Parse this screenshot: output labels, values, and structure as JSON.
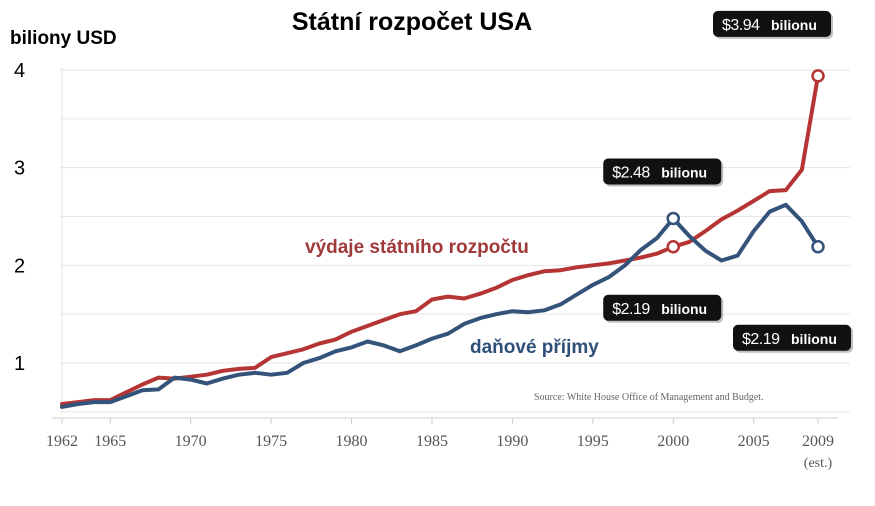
{
  "chart_data": {
    "type": "line",
    "title": "Státní rozpočet USA",
    "ylabel": "biliony USD",
    "source": "Source:   White House Office of Management and Budget.",
    "xlim": [
      1962,
      2009
    ],
    "ylim": [
      0.3,
      4.3
    ],
    "yticks": [
      1,
      2,
      3,
      4
    ],
    "xticks": [
      {
        "value": 1962,
        "label": "1962"
      },
      {
        "value": 1965,
        "label": "1965"
      },
      {
        "value": 1970,
        "label": "1970"
      },
      {
        "value": 1975,
        "label": "1975"
      },
      {
        "value": 1980,
        "label": "1980"
      },
      {
        "value": 1985,
        "label": "1985"
      },
      {
        "value": 1990,
        "label": "1990"
      },
      {
        "value": 1995,
        "label": "1995"
      },
      {
        "value": 2000,
        "label": "2000"
      },
      {
        "value": 2005,
        "label": "2005"
      },
      {
        "value": 2009,
        "label": "2009",
        "sublabel": "(est.)"
      }
    ],
    "grid": true,
    "series": [
      {
        "name": "výdaje státního rozpočtu",
        "color": "#b53535",
        "label_color": "#a03a3a",
        "points": [
          [
            1962,
            0.58
          ],
          [
            1963,
            0.6
          ],
          [
            1964,
            0.62
          ],
          [
            1965,
            0.62
          ],
          [
            1966,
            0.7
          ],
          [
            1967,
            0.78
          ],
          [
            1968,
            0.85
          ],
          [
            1969,
            0.84
          ],
          [
            1970,
            0.86
          ],
          [
            1971,
            0.88
          ],
          [
            1972,
            0.92
          ],
          [
            1973,
            0.94
          ],
          [
            1974,
            0.95
          ],
          [
            1975,
            1.06
          ],
          [
            1976,
            1.1
          ],
          [
            1977,
            1.14
          ],
          [
            1978,
            1.2
          ],
          [
            1979,
            1.24
          ],
          [
            1980,
            1.32
          ],
          [
            1981,
            1.38
          ],
          [
            1982,
            1.44
          ],
          [
            1983,
            1.5
          ],
          [
            1984,
            1.53
          ],
          [
            1985,
            1.65
          ],
          [
            1986,
            1.68
          ],
          [
            1987,
            1.66
          ],
          [
            1988,
            1.71
          ],
          [
            1989,
            1.77
          ],
          [
            1990,
            1.85
          ],
          [
            1991,
            1.9
          ],
          [
            1992,
            1.94
          ],
          [
            1993,
            1.95
          ],
          [
            1994,
            1.98
          ],
          [
            1995,
            2.0
          ],
          [
            1996,
            2.02
          ],
          [
            1997,
            2.05
          ],
          [
            1998,
            2.08
          ],
          [
            1999,
            2.12
          ],
          [
            2000,
            2.19
          ],
          [
            2001,
            2.24
          ],
          [
            2002,
            2.35
          ],
          [
            2003,
            2.47
          ],
          [
            2004,
            2.56
          ],
          [
            2005,
            2.66
          ],
          [
            2006,
            2.76
          ],
          [
            2007,
            2.77
          ],
          [
            2008,
            2.98
          ],
          [
            2009,
            3.94
          ]
        ]
      },
      {
        "name": "daňové příjmy",
        "color": "#34537a",
        "label_color": "#2e4f78",
        "points": [
          [
            1962,
            0.55
          ],
          [
            1963,
            0.58
          ],
          [
            1964,
            0.6
          ],
          [
            1965,
            0.6
          ],
          [
            1966,
            0.66
          ],
          [
            1967,
            0.72
          ],
          [
            1968,
            0.73
          ],
          [
            1969,
            0.85
          ],
          [
            1970,
            0.83
          ],
          [
            1971,
            0.79
          ],
          [
            1972,
            0.84
          ],
          [
            1973,
            0.88
          ],
          [
            1974,
            0.9
          ],
          [
            1975,
            0.88
          ],
          [
            1976,
            0.9
          ],
          [
            1977,
            1.0
          ],
          [
            1978,
            1.05
          ],
          [
            1979,
            1.12
          ],
          [
            1980,
            1.16
          ],
          [
            1981,
            1.22
          ],
          [
            1982,
            1.18
          ],
          [
            1983,
            1.12
          ],
          [
            1984,
            1.18
          ],
          [
            1985,
            1.25
          ],
          [
            1986,
            1.3
          ],
          [
            1987,
            1.4
          ],
          [
            1988,
            1.46
          ],
          [
            1989,
            1.5
          ],
          [
            1990,
            1.53
          ],
          [
            1991,
            1.52
          ],
          [
            1992,
            1.54
          ],
          [
            1993,
            1.6
          ],
          [
            1994,
            1.7
          ],
          [
            1995,
            1.8
          ],
          [
            1996,
            1.88
          ],
          [
            1997,
            2.0
          ],
          [
            1998,
            2.16
          ],
          [
            1999,
            2.28
          ],
          [
            2000,
            2.48
          ],
          [
            2001,
            2.3
          ],
          [
            2002,
            2.15
          ],
          [
            2003,
            2.05
          ],
          [
            2004,
            2.1
          ],
          [
            2005,
            2.35
          ],
          [
            2006,
            2.55
          ],
          [
            2007,
            2.62
          ],
          [
            2008,
            2.45
          ],
          [
            2009,
            2.19
          ]
        ]
      }
    ],
    "annotations": [
      {
        "series": 0,
        "x": 2009,
        "y": 3.94,
        "value": "$3.94",
        "unit": "bilionu"
      },
      {
        "series": 1,
        "x": 2000,
        "y": 2.48,
        "value": "$2.48",
        "unit": "bilionu"
      },
      {
        "series": 0,
        "x": 2000,
        "y": 2.19,
        "value": "$2.19",
        "unit": "bilionu"
      },
      {
        "series": 1,
        "x": 2009,
        "y": 2.19,
        "value": "$2.19",
        "unit": "bilionu"
      }
    ]
  }
}
